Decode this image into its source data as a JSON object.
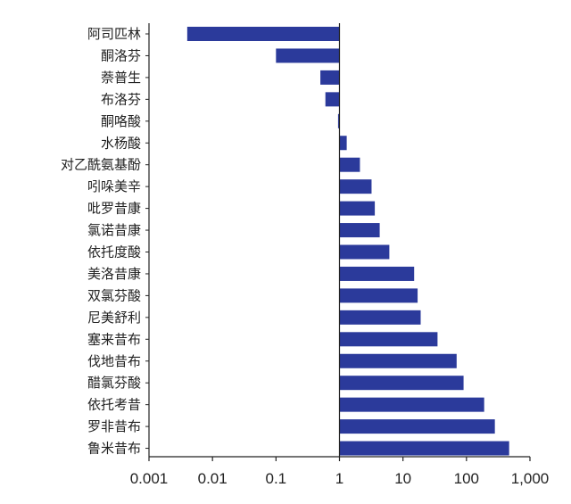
{
  "chart_data": {
    "type": "bar",
    "orientation": "horizontal",
    "x_scale": "log",
    "xlim": [
      0.001,
      1000
    ],
    "baseline": 1,
    "x_ticks": [
      0.001,
      0.01,
      0.1,
      1,
      10,
      100,
      1000
    ],
    "x_tick_labels": [
      "0.001",
      "0.01",
      "0.1",
      "1",
      "10",
      "100",
      "1,000"
    ],
    "categories": [
      "阿司匹林",
      "酮洛芬",
      "萘普生",
      "布洛芬",
      "酮咯酸",
      "水杨酸",
      "对乙酰氨基酚",
      "吲哚美辛",
      "吡罗昔康",
      "氯诺昔康",
      "依托度酸",
      "美洛昔康",
      "双氯芬酸",
      "尼美舒利",
      "塞来昔布",
      "伐地昔布",
      "醋氯芬酸",
      "依托考昔",
      "罗非昔布",
      "鲁米昔布"
    ],
    "values": [
      0.004,
      0.1,
      0.5,
      0.6,
      0.95,
      1.3,
      2.1,
      3.2,
      3.6,
      4.3,
      6.1,
      15,
      17,
      19,
      35,
      70,
      90,
      190,
      280,
      470
    ],
    "bar_color": "#2b3a9b",
    "grid": false,
    "title": "",
    "xlabel": "",
    "ylabel": ""
  }
}
